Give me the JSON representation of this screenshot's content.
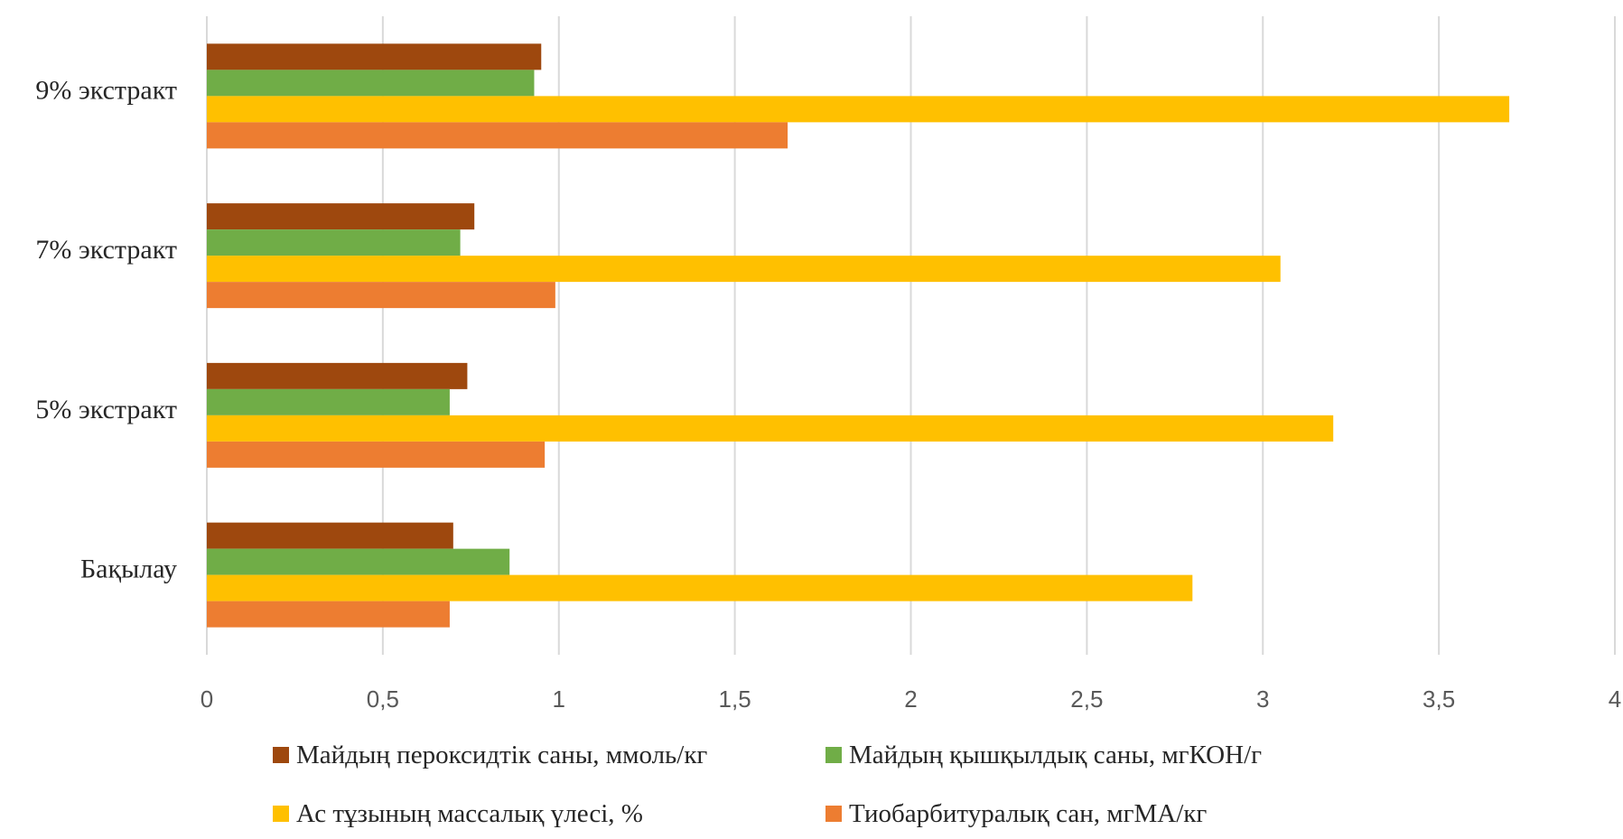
{
  "chart_data": {
    "type": "bar",
    "orientation": "horizontal",
    "categories": [
      "Бақылау",
      "5% экстракт",
      "7% экстракт",
      "9% экстракт"
    ],
    "series": [
      {
        "name": "Майдың пероксидтік саны, ммоль/кг",
        "color": "#9E480E",
        "values": [
          0.7,
          0.74,
          0.76,
          0.95
        ]
      },
      {
        "name": "Майдың қышқылдық саны, мгКОН/г",
        "color": "#70AD47",
        "values": [
          0.86,
          0.69,
          0.72,
          0.93
        ]
      },
      {
        "name": "Ас тұзының массалық үлесі, %",
        "color": "#FFC000",
        "values": [
          2.8,
          3.2,
          3.05,
          3.7
        ]
      },
      {
        "name": "Тиобарбитуралық сан, мгМА/кг",
        "color": "#ED7D31",
        "values": [
          0.69,
          0.96,
          0.99,
          1.65
        ]
      }
    ],
    "x_ticks": [
      "0",
      "0,5",
      "1",
      "1,5",
      "2",
      "2,5",
      "3",
      "3,5",
      "4"
    ],
    "xlim": [
      0,
      4
    ],
    "grid": true,
    "legend_position": "bottom",
    "title": "",
    "xlabel": "",
    "ylabel": ""
  }
}
